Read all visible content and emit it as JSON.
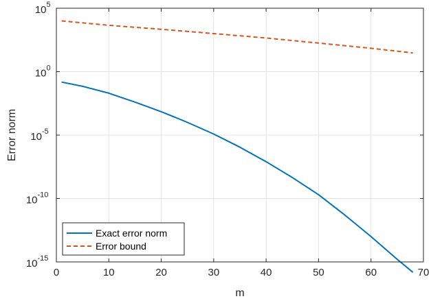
{
  "chart_data": {
    "type": "line",
    "xlabel": "m",
    "ylabel": "Error norm",
    "xlim": [
      0,
      70
    ],
    "ylim": [
      1e-15,
      100000
    ],
    "yscale": "log",
    "grid": true,
    "legend_position": "bottom-left",
    "x_ticks": [
      "0",
      "10",
      "20",
      "30",
      "40",
      "50",
      "60",
      "70"
    ],
    "y_ticks": [
      {
        "base": "10",
        "exp": "-15",
        "value": 1e-15
      },
      {
        "base": "10",
        "exp": "-10",
        "value": 1e-10
      },
      {
        "base": "10",
        "exp": "-5",
        "value": 1e-05
      },
      {
        "base": "10",
        "exp": "0",
        "value": 1
      },
      {
        "base": "10",
        "exp": "5",
        "value": 100000
      }
    ],
    "series": [
      {
        "name": "Exact error norm",
        "color": "#0072BD",
        "dash": "solid",
        "x": [
          1,
          5,
          10,
          15,
          20,
          25,
          30,
          35,
          40,
          45,
          50,
          55,
          60,
          65,
          68
        ],
        "y": [
          0.15,
          0.07,
          0.02,
          0.004,
          0.0007,
          0.0001,
          1.2e-05,
          1.1e-06,
          8e-08,
          4.5e-09,
          2e-10,
          5e-12,
          1e-13,
          1.6e-15,
          1.5e-16
        ]
      },
      {
        "name": "Error bound",
        "color": "#D95319",
        "dash": "dashed",
        "x": [
          1,
          10,
          20,
          30,
          40,
          50,
          60,
          68
        ],
        "y": [
          10000,
          4500,
          2200,
          1000,
          450,
          180,
          70,
          30
        ]
      }
    ]
  }
}
